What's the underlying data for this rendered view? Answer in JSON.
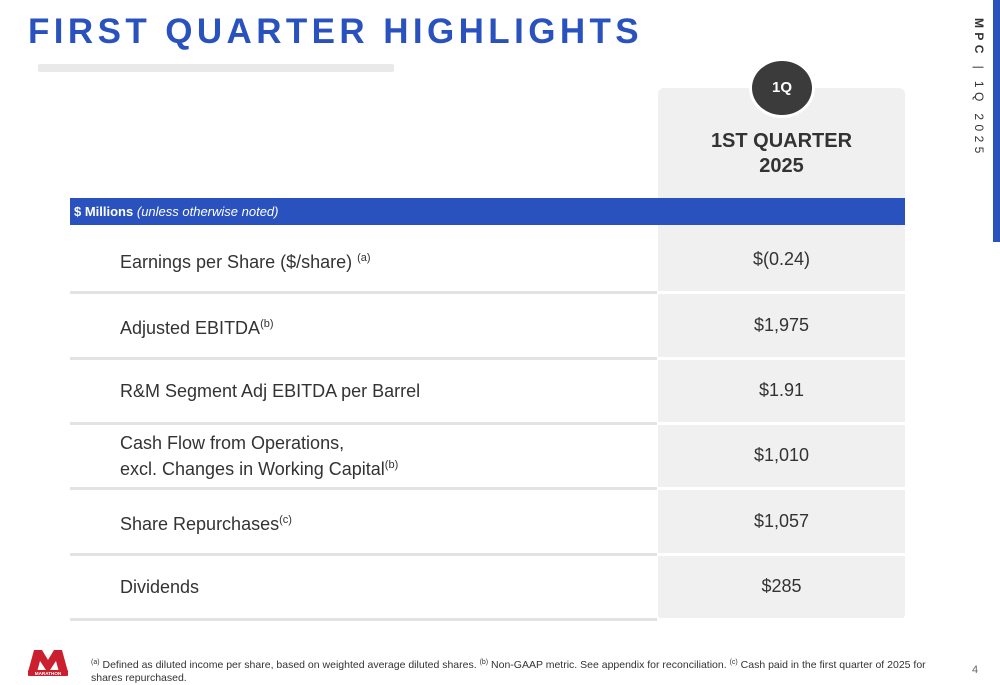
{
  "title": "FIRST QUARTER HIGHLIGHTS",
  "side": {
    "company": "MPC",
    "divider": "|",
    "period": "1Q 2025"
  },
  "badge": "1Q",
  "column_header": {
    "line1": "1ST QUARTER",
    "line2": "2025"
  },
  "units": {
    "bold": "$ Millions",
    "italic": "(unless otherwise noted)"
  },
  "rows": [
    {
      "label": "Earnings per Share ($/share)",
      "note": "(a)",
      "value": "$(0.24)"
    },
    {
      "label": "Adjusted EBITDA",
      "note": "(b)",
      "value": "$1,975"
    },
    {
      "label": "R&M Segment Adj EBITDA per Barrel",
      "note": "",
      "value": "$1.91"
    },
    {
      "label_line1": "Cash Flow from Operations,",
      "label_line2": "excl. Changes in Working Capital",
      "note": "(b)",
      "value": "$1,010"
    },
    {
      "label": "Share Repurchases",
      "note": "(c)",
      "value": "$1,057"
    },
    {
      "label": "Dividends",
      "note": "",
      "value": "$285"
    }
  ],
  "footnotes": [
    {
      "mark": "(a)",
      "text": " Defined as diluted income per share, based on weighted average diluted shares. "
    },
    {
      "mark": "(b)",
      "text": " Non-GAAP metric. See appendix for reconciliation. "
    },
    {
      "mark": "(c)",
      "text": " Cash paid in the first quarter of 2025 for shares repurchased."
    }
  ],
  "logo": {
    "text": "MARATHON",
    "icon": "marathon-logo",
    "color": "#cc1f2e"
  },
  "page_number": "4",
  "colors": {
    "accent": "#2a52be",
    "dark": "#333333",
    "panel": "#f0f0f0"
  }
}
